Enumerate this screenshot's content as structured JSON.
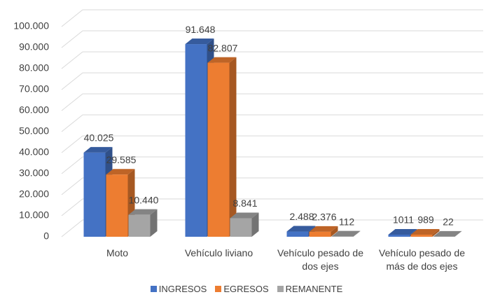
{
  "chart_data": {
    "type": "bar3d",
    "categories": [
      "Moto",
      "Vehículo liviano",
      "Vehículo pesado de dos ejes",
      "Vehículo pesado de más de dos ejes"
    ],
    "series": [
      {
        "name": "INGRESOS",
        "color": "#4472c4",
        "values": [
          40025,
          91648,
          2488,
          1011
        ],
        "value_labels": [
          "40.025",
          "91.648",
          "2.488",
          "1011"
        ]
      },
      {
        "name": "EGRESOS",
        "color": "#ed7d31",
        "values": [
          29585,
          82807,
          2376,
          989
        ],
        "value_labels": [
          "29.585",
          "82.807",
          "2.376",
          "989"
        ]
      },
      {
        "name": "REMANENTE",
        "color": "#a5a5a5",
        "values": [
          10440,
          8841,
          112,
          22
        ],
        "value_labels": [
          "10.440",
          "8.841",
          "112",
          "22"
        ]
      }
    ],
    "ylim": [
      0,
      100000
    ],
    "yticks": [
      0,
      {
        "value": 10000,
        "label": "10.000"
      },
      {
        "value": 20000,
        "label": "20.000"
      },
      {
        "value": 30000,
        "label": "30.000"
      },
      {
        "value": 40000,
        "label": "40.000"
      },
      {
        "value": 50000,
        "label": "50.000"
      },
      {
        "value": 60000,
        "label": "60.000"
      },
      {
        "value": 70000,
        "label": "70.000"
      },
      {
        "value": 80000,
        "label": "80.000"
      },
      {
        "value": 90000,
        "label": "90.000"
      },
      {
        "value": 100000,
        "label": "100.000"
      }
    ],
    "grid": true,
    "legend": "bottom"
  }
}
